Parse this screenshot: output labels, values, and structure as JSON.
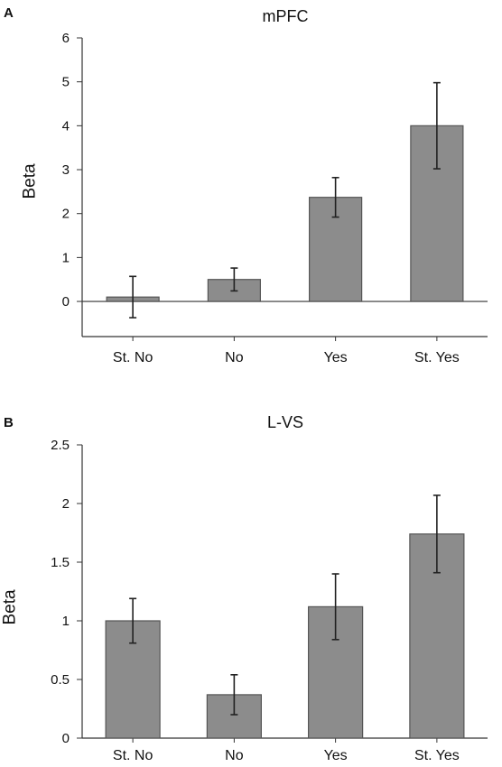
{
  "chart_data": [
    {
      "panel": "A",
      "type": "bar",
      "title": "mPFC",
      "ylabel": "Beta",
      "xlabel": "",
      "categories": [
        "St. No",
        "No",
        "Yes",
        "St. Yes"
      ],
      "values": [
        0.1,
        0.5,
        2.37,
        4.0
      ],
      "errors": [
        0.47,
        0.26,
        0.45,
        0.98
      ],
      "ylim": [
        -0.8,
        6
      ],
      "yticks": [
        "0",
        "1",
        "2",
        "3",
        "4",
        "5",
        "6"
      ],
      "bar_color": "#8c8c8c",
      "grid": false
    },
    {
      "panel": "B",
      "type": "bar",
      "title": "L-VS",
      "ylabel": "Beta",
      "xlabel": "",
      "categories": [
        "St. No",
        "No",
        "Yes",
        "St. Yes"
      ],
      "values": [
        1.0,
        0.37,
        1.12,
        1.74
      ],
      "errors": [
        0.19,
        0.17,
        0.28,
        0.33
      ],
      "ylim": [
        0,
        2.5
      ],
      "yticks": [
        "0",
        "0.5",
        "1",
        "1.5",
        "2",
        "2.5"
      ],
      "bar_color": "#8c8c8c",
      "grid": false
    }
  ]
}
